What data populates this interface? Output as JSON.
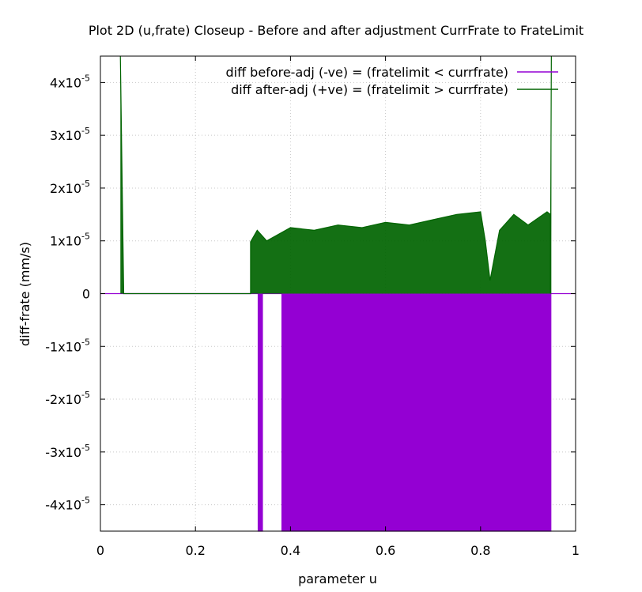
{
  "chart_data": {
    "type": "line",
    "title": "Plot 2D (u,frate) Closeup - Before and after adjustment CurrFrate to FrateLimit",
    "xlabel": "parameter u",
    "ylabel": "diff-frate (mm/s)",
    "xlim": [
      0,
      1
    ],
    "ylim": [
      -4.5e-05,
      4.5e-05
    ],
    "grid": true,
    "legend_position": "top-right",
    "x_ticks": [
      {
        "value": 0,
        "label": "0"
      },
      {
        "value": 0.2,
        "label": "0.2"
      },
      {
        "value": 0.4,
        "label": "0.4"
      },
      {
        "value": 0.6,
        "label": "0.6"
      },
      {
        "value": 0.8,
        "label": "0.8"
      },
      {
        "value": 1,
        "label": "1"
      }
    ],
    "y_ticks": [
      {
        "value": 4e-05,
        "mant": "4x10",
        "exp": "-5"
      },
      {
        "value": 3e-05,
        "mant": "3x10",
        "exp": "-5"
      },
      {
        "value": 2e-05,
        "mant": "2x10",
        "exp": "-5"
      },
      {
        "value": 1e-05,
        "mant": "1x10",
        "exp": "-5"
      },
      {
        "value": 0,
        "mant": "0",
        "exp": ""
      },
      {
        "value": -1e-05,
        "mant": "-1x10",
        "exp": "-5"
      },
      {
        "value": -2e-05,
        "mant": "-2x10",
        "exp": "-5"
      },
      {
        "value": -3e-05,
        "mant": "-3x10",
        "exp": "-5"
      },
      {
        "value": -4e-05,
        "mant": "-4x10",
        "exp": "-5"
      }
    ],
    "series": [
      {
        "name": "diff before-adj (-ve) = (fratelimit < currfrate)",
        "color": "#9400d3",
        "baseline": 0,
        "points": [
          [
            0,
            0
          ],
          [
            0.332,
            0
          ],
          [
            0.332,
            -4.5e-05
          ],
          [
            0.341,
            -4.5e-05
          ],
          [
            0.341,
            0
          ],
          [
            0.382,
            0
          ],
          [
            0.382,
            -4.5e-05
          ],
          [
            0.948,
            -4.5e-05
          ],
          [
            0.948,
            0
          ],
          [
            1,
            0
          ]
        ]
      },
      {
        "name": "diff after-adj (+ve) = (fratelimit > currfrate)",
        "color": "#006400",
        "baseline": 0,
        "points": [
          [
            0.042,
            4.5e-05
          ],
          [
            0.049,
            0
          ],
          [
            0.316,
            0
          ],
          [
            0.316,
            9.8e-06
          ],
          [
            0.33,
            1.2e-05
          ],
          [
            0.35,
            1e-05
          ],
          [
            0.4,
            1.25e-05
          ],
          [
            0.45,
            1.2e-05
          ],
          [
            0.5,
            1.3e-05
          ],
          [
            0.55,
            1.25e-05
          ],
          [
            0.6,
            1.35e-05
          ],
          [
            0.65,
            1.3e-05
          ],
          [
            0.7,
            1.4e-05
          ],
          [
            0.75,
            1.5e-05
          ],
          [
            0.8,
            1.55e-05
          ],
          [
            0.81,
            1e-05
          ],
          [
            0.82,
            2.5e-06
          ],
          [
            0.84,
            1.2e-05
          ],
          [
            0.87,
            1.5e-05
          ],
          [
            0.9,
            1.3e-05
          ],
          [
            0.94,
            1.55e-05
          ],
          [
            0.947,
            1.5e-05
          ],
          [
            0.947,
            0
          ],
          [
            0.949,
            4.5e-05
          ]
        ]
      }
    ]
  }
}
